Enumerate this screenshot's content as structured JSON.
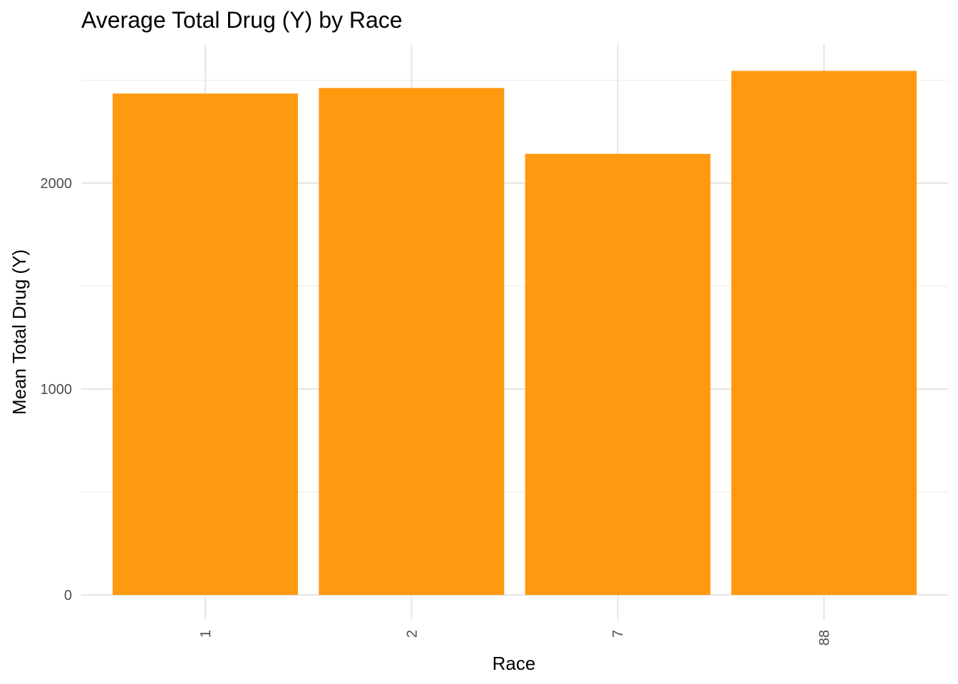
{
  "chart_data": {
    "type": "bar",
    "title": "Average Total Drug (Y) by Race",
    "xlabel": "Race",
    "ylabel": "Mean Total Drug (Y)",
    "categories": [
      "1",
      "2",
      "7",
      "88"
    ],
    "values": [
      2435,
      2462,
      2142,
      2545
    ],
    "ylim": [
      0,
      2700
    ],
    "yticks": [
      0,
      1000,
      2000
    ],
    "ytick_labels": [
      "0",
      "1000",
      "2000"
    ],
    "minor_yticks": [
      500,
      1500,
      2500
    ],
    "bar_color": "#FF9910",
    "grid": true,
    "legend": "none"
  }
}
